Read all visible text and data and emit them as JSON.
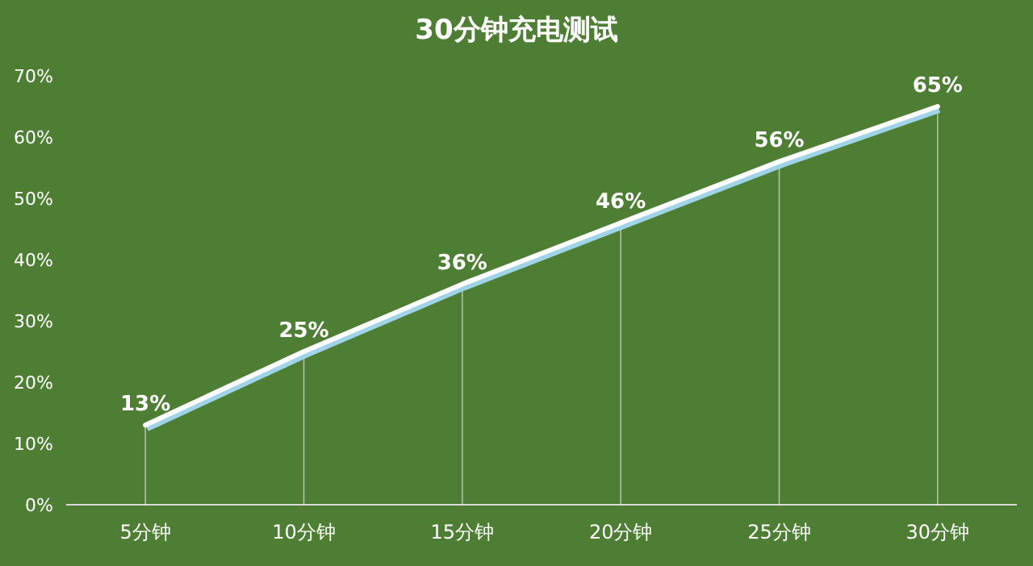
{
  "chart_data": {
    "type": "line",
    "title": "30分钟充电测试",
    "categories": [
      "5分钟",
      "10分钟",
      "15分钟",
      "20分钟",
      "25分钟",
      "30分钟"
    ],
    "series": [
      {
        "color": "#ffffff",
        "values": [
          13,
          25,
          36,
          46,
          56,
          65
        ]
      }
    ],
    "value_labels": [
      "13%",
      "25%",
      "36%",
      "46%",
      "56%",
      "65%"
    ],
    "ylim": [
      0,
      70
    ],
    "yticks": [
      {
        "value": 0,
        "label": "0%"
      },
      {
        "value": 10,
        "label": "10%"
      },
      {
        "value": 20,
        "label": "20%"
      },
      {
        "value": 30,
        "label": "30%"
      },
      {
        "value": 40,
        "label": "40%"
      },
      {
        "value": 50,
        "label": "50%"
      },
      {
        "value": 60,
        "label": "60%"
      },
      {
        "value": 70,
        "label": "70%"
      }
    ],
    "grid": "x",
    "marker": "none",
    "line_style": "solid"
  }
}
